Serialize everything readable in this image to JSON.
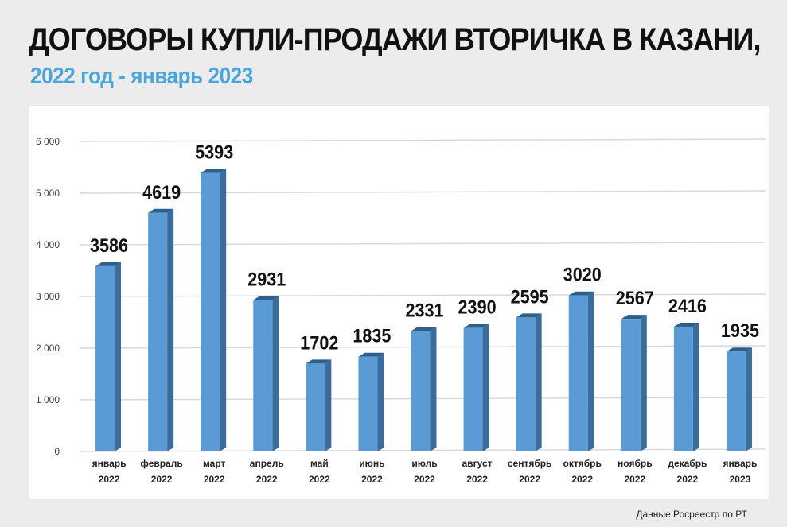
{
  "header": {
    "title": "ДОГОВОРЫ КУПЛИ-ПРОДАЖИ ВТОРИЧКА В КАЗАНИ,",
    "subtitle": "2022 год - январь 2023"
  },
  "footer": {
    "source": "Данные Росреестр по РТ"
  },
  "colors": {
    "bar_front": "#5b9bd5",
    "bar_side": "#3a6d9a",
    "bar_top": "#2e5f8a",
    "subtitle": "#4aa6d9"
  },
  "chart_data": {
    "type": "bar",
    "title": "",
    "xlabel": "",
    "ylabel": "",
    "ylim": [
      0,
      6000
    ],
    "yticks": [
      0,
      1000,
      2000,
      3000,
      4000,
      5000,
      6000
    ],
    "ytick_labels": [
      "0",
      "1 000",
      "2 000",
      "3 000",
      "4 000",
      "5 000",
      "6 000"
    ],
    "grid": true,
    "categories": [
      [
        "январь",
        "2022"
      ],
      [
        "февраль",
        "2022"
      ],
      [
        "март",
        "2022"
      ],
      [
        "апрель",
        "2022"
      ],
      [
        "май",
        "2022"
      ],
      [
        "июнь",
        "2022"
      ],
      [
        "июль",
        "2022"
      ],
      [
        "август",
        "2022"
      ],
      [
        "сентябрь",
        "2022"
      ],
      [
        "октябрь",
        "2022"
      ],
      [
        "ноябрь",
        "2022"
      ],
      [
        "декабрь",
        "2022"
      ],
      [
        "январь",
        "2023"
      ]
    ],
    "values": [
      3586,
      4619,
      5393,
      2931,
      1702,
      1835,
      2331,
      2390,
      2595,
      3020,
      2567,
      2416,
      1935
    ]
  }
}
